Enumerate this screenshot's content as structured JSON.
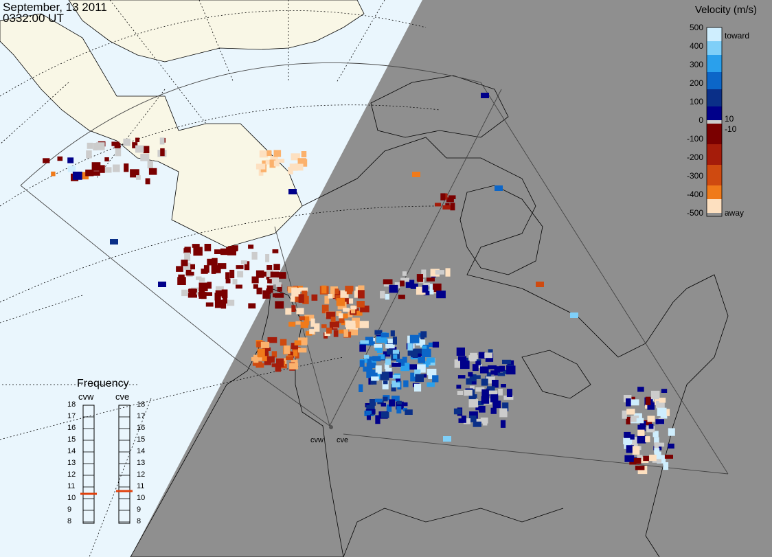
{
  "header": {
    "date": "September, 13 2011",
    "time": "0332:00 UT"
  },
  "colorbar": {
    "title": "Velocity (m/s)",
    "labels": [
      "500",
      "400",
      "300",
      "200",
      "100",
      "0",
      "-100",
      "-200",
      "-300",
      "-400",
      "-500"
    ],
    "inner_labels": [
      "10",
      "-10"
    ],
    "toward": "toward",
    "away": "away",
    "colors": [
      "#cfeefe",
      "#7fcff8",
      "#2aa0ec",
      "#0c66c8",
      "#0a2f88",
      "#00008a",
      "#cccccc",
      "#7a0000",
      "#a51c0a",
      "#cf4a10",
      "#f07a1a",
      "#fbb16c",
      "#fde0c0"
    ]
  },
  "frequency": {
    "title": "Frequency",
    "radars": [
      "cvw",
      "cve"
    ],
    "ticks": [
      "18",
      "17",
      "16",
      "15",
      "14",
      "13",
      "12",
      "11",
      "10",
      "9",
      "8"
    ],
    "selected_mhz": [
      10.5,
      10.7
    ],
    "marker_color": "#e0400c"
  },
  "sites": [
    "cvw",
    "cve"
  ],
  "colors": {
    "land_day": "#f9f7e6",
    "ocean_day": "#eaf6fd",
    "night": "#8f8f8f"
  }
}
